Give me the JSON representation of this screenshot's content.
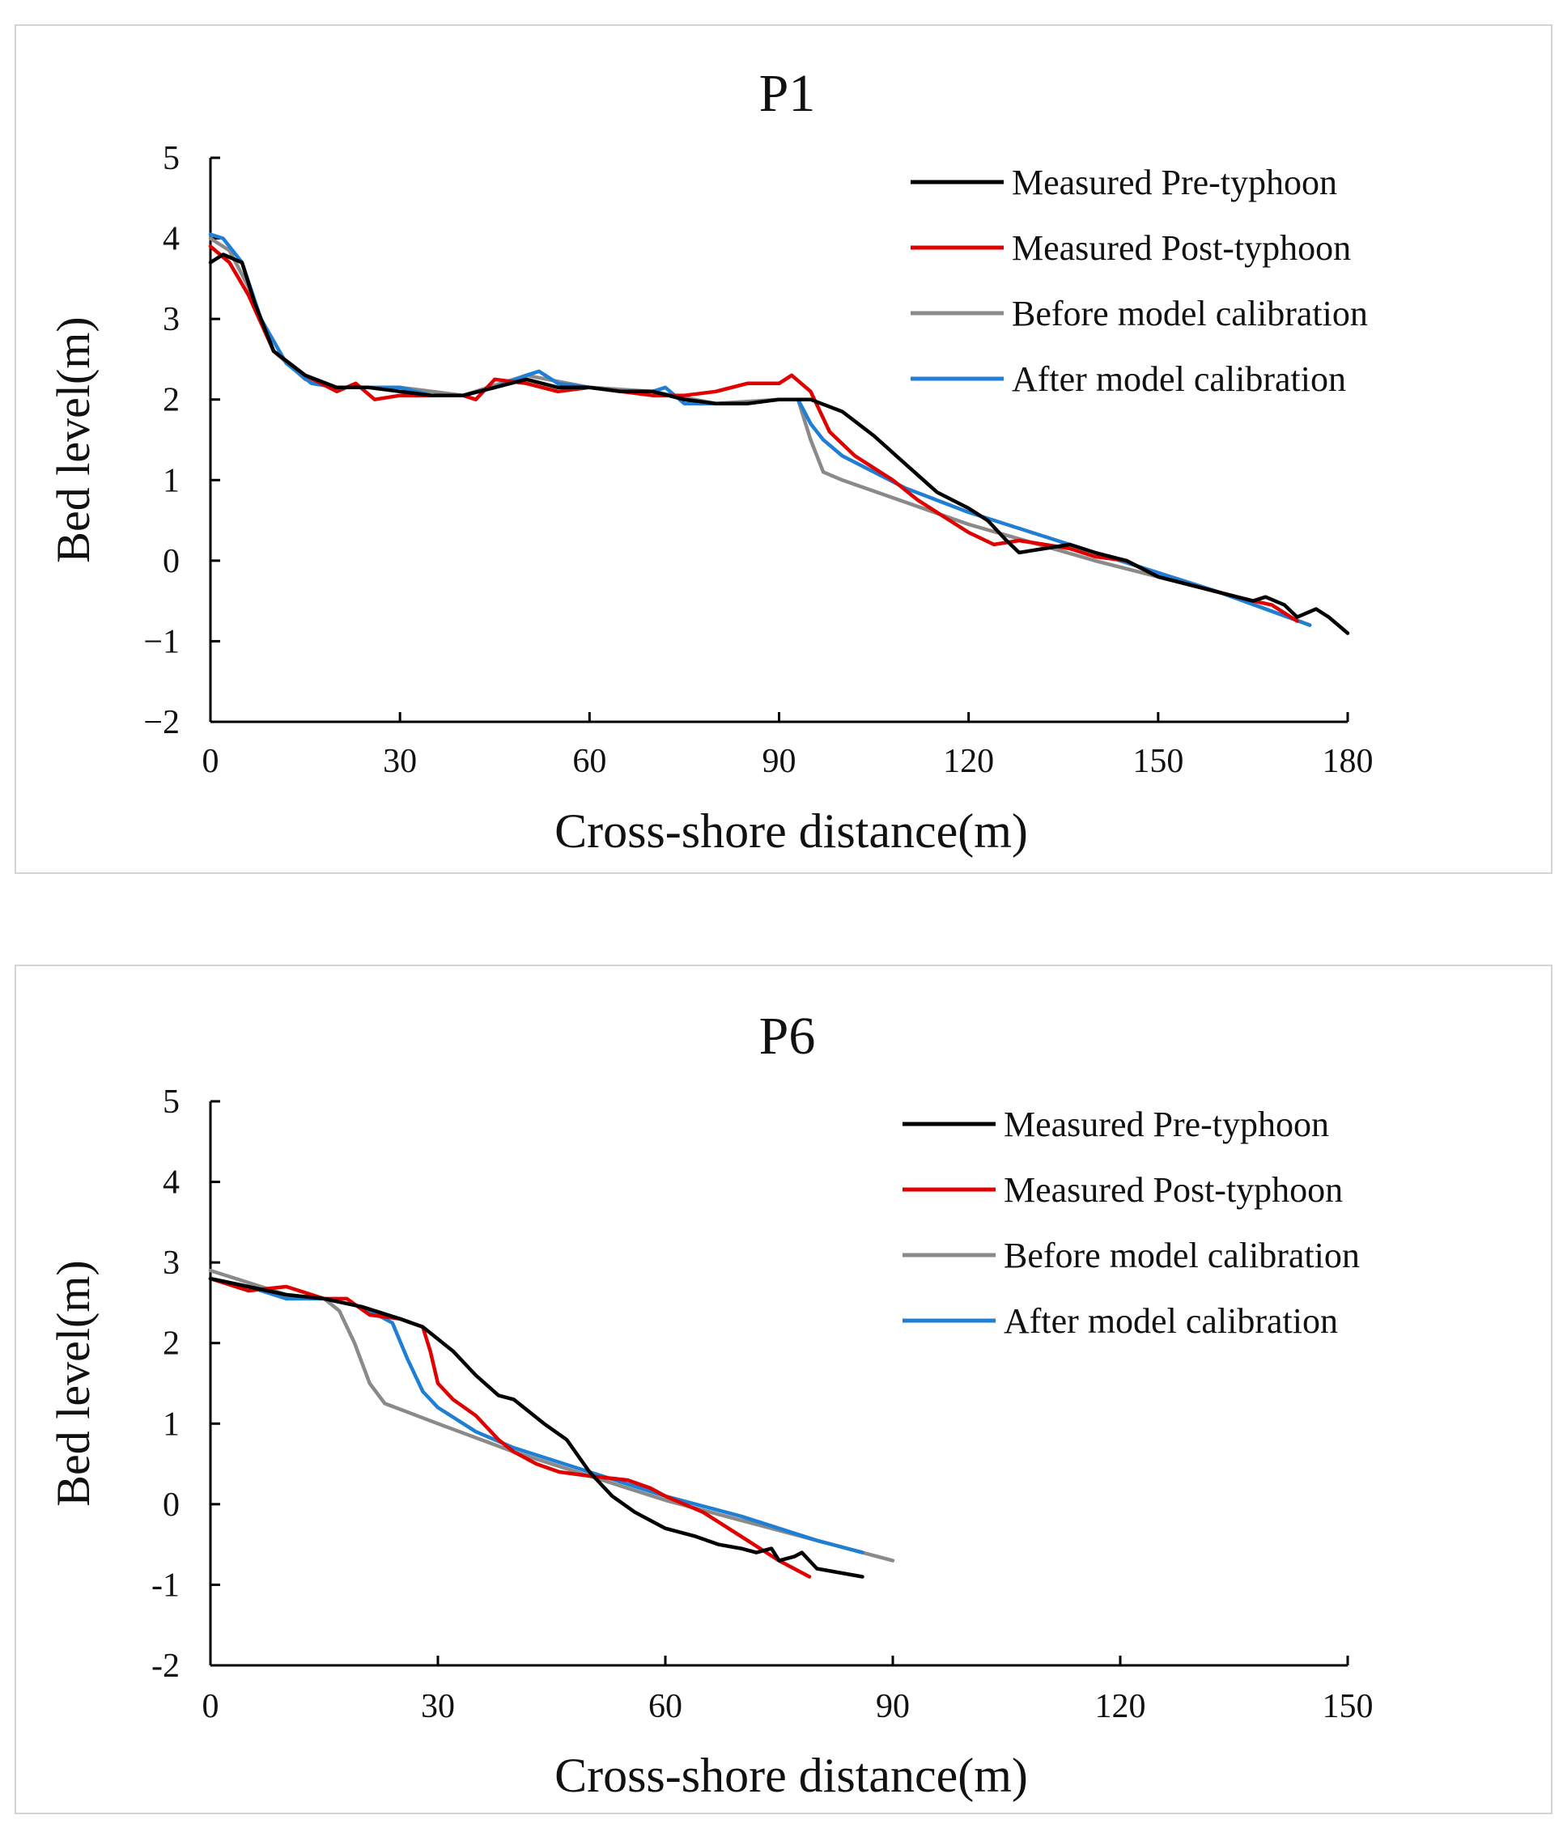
{
  "chart_data": [
    {
      "type": "line",
      "title": "P1",
      "xlabel": "Cross-shore  distance(m)",
      "ylabel": "Bed level(m)",
      "xlim": [
        0,
        180
      ],
      "ylim": [
        -2,
        5
      ],
      "xticks": [
        0,
        30,
        60,
        90,
        120,
        150,
        180
      ],
      "yticks": [
        5,
        4,
        3,
        2,
        1,
        0,
        -1,
        -2
      ],
      "xtick_labels": [
        "0",
        "30",
        "60",
        "90",
        "120",
        "150",
        "180"
      ],
      "ytick_labels": [
        "5",
        "4",
        "3",
        "2",
        "1",
        "0",
        "−1",
        "−2"
      ],
      "legend_position": "top-right",
      "series": [
        {
          "name": "Measured Pre-typhoon",
          "color": "#000000",
          "x": [
            0,
            2,
            5,
            7,
            10,
            15,
            20,
            25,
            30,
            35,
            40,
            45,
            50,
            55,
            60,
            65,
            70,
            75,
            80,
            85,
            90,
            95,
            100,
            105,
            110,
            115,
            120,
            123,
            126,
            128,
            132,
            136,
            140,
            145,
            150,
            155,
            160,
            165,
            167,
            170,
            172,
            175,
            177,
            180
          ],
          "y": [
            3.7,
            3.8,
            3.7,
            3.2,
            2.6,
            2.3,
            2.15,
            2.15,
            2.1,
            2.05,
            2.05,
            2.15,
            2.25,
            2.15,
            2.15,
            2.1,
            2.1,
            2.0,
            1.95,
            1.95,
            2.0,
            2.0,
            1.85,
            1.55,
            1.2,
            0.85,
            0.65,
            0.5,
            0.25,
            0.1,
            0.15,
            0.2,
            0.1,
            0.0,
            -0.2,
            -0.3,
            -0.4,
            -0.5,
            -0.45,
            -0.55,
            -0.7,
            -0.6,
            -0.7,
            -0.9
          ]
        },
        {
          "name": "Measured Post-typhoon",
          "color": "#e00000",
          "x": [
            0,
            3,
            6,
            10,
            15,
            20,
            23,
            26,
            30,
            35,
            40,
            42,
            45,
            50,
            55,
            60,
            65,
            70,
            75,
            80,
            85,
            90,
            92,
            95,
            98,
            102,
            108,
            112,
            116,
            120,
            124,
            128,
            132,
            136,
            140,
            145,
            150,
            155,
            160,
            165,
            168,
            172
          ],
          "y": [
            3.9,
            3.7,
            3.3,
            2.6,
            2.3,
            2.1,
            2.2,
            2.0,
            2.05,
            2.05,
            2.05,
            2.0,
            2.25,
            2.2,
            2.1,
            2.15,
            2.1,
            2.05,
            2.05,
            2.1,
            2.2,
            2.2,
            2.3,
            2.1,
            1.6,
            1.3,
            1.0,
            0.75,
            0.55,
            0.35,
            0.2,
            0.25,
            0.2,
            0.15,
            0.05,
            0.0,
            -0.2,
            -0.3,
            -0.4,
            -0.5,
            -0.55,
            -0.75
          ]
        },
        {
          "name": "Before model calibration",
          "color": "#8a8a8a",
          "x": [
            0,
            3,
            6,
            10,
            15,
            20,
            30,
            40,
            50,
            60,
            70,
            80,
            90,
            93,
            95,
            97,
            100,
            120,
            140,
            160,
            174
          ],
          "y": [
            4.0,
            3.85,
            3.4,
            2.6,
            2.25,
            2.15,
            2.15,
            2.05,
            2.3,
            2.15,
            2.1,
            1.95,
            2.0,
            2.0,
            1.5,
            1.1,
            1.0,
            0.45,
            0.0,
            -0.4,
            -0.8
          ]
        },
        {
          "name": "After model calibration",
          "color": "#1f7fd4",
          "x": [
            0,
            2,
            5,
            8,
            12,
            16,
            20,
            25,
            30,
            35,
            40,
            45,
            50,
            52,
            55,
            60,
            65,
            70,
            72,
            75,
            80,
            85,
            90,
            93,
            95,
            97,
            100,
            105,
            110,
            120,
            130,
            140,
            150,
            160,
            174
          ],
          "y": [
            4.05,
            4.0,
            3.7,
            3.0,
            2.45,
            2.2,
            2.15,
            2.15,
            2.15,
            2.05,
            2.05,
            2.15,
            2.3,
            2.35,
            2.2,
            2.15,
            2.1,
            2.1,
            2.15,
            1.95,
            1.95,
            1.95,
            2.0,
            2.0,
            1.7,
            1.5,
            1.3,
            1.1,
            0.9,
            0.6,
            0.35,
            0.1,
            -0.15,
            -0.4,
            -0.8
          ]
        }
      ]
    },
    {
      "type": "line",
      "title": "P6",
      "xlabel": "Cross-shore  distance(m)",
      "ylabel": "Bed level(m)",
      "xlim": [
        0,
        150
      ],
      "ylim": [
        -2,
        5
      ],
      "xticks": [
        0,
        30,
        60,
        90,
        120,
        150
      ],
      "yticks": [
        5,
        4,
        3,
        2,
        1,
        0,
        -1,
        -2
      ],
      "xtick_labels": [
        "0",
        "30",
        "60",
        "90",
        "120",
        "150"
      ],
      "ytick_labels": [
        "5",
        "4",
        "3",
        "2",
        "1",
        "0",
        "-1",
        "-2"
      ],
      "legend_position": "top-right",
      "series": [
        {
          "name": "Measured Pre-typhoon",
          "color": "#000000",
          "x": [
            0,
            5,
            10,
            15,
            20,
            25,
            28,
            32,
            35,
            38,
            40,
            44,
            47,
            50,
            53,
            56,
            60,
            64,
            67,
            70,
            72,
            74,
            75,
            77,
            78,
            80,
            83,
            86
          ],
          "y": [
            2.8,
            2.7,
            2.6,
            2.55,
            2.45,
            2.3,
            2.2,
            1.9,
            1.6,
            1.35,
            1.3,
            1.0,
            0.8,
            0.4,
            0.1,
            -0.1,
            -0.3,
            -0.4,
            -0.5,
            -0.55,
            -0.6,
            -0.55,
            -0.7,
            -0.65,
            -0.6,
            -0.8,
            -0.85,
            -0.9
          ]
        },
        {
          "name": "Measured Post-typhoon",
          "color": "#e00000",
          "x": [
            0,
            5,
            10,
            15,
            18,
            21,
            25,
            28,
            29,
            30,
            32,
            35,
            38,
            40,
            43,
            46,
            50,
            55,
            58,
            60,
            65,
            70,
            75,
            79
          ],
          "y": [
            2.8,
            2.65,
            2.7,
            2.55,
            2.55,
            2.35,
            2.3,
            2.2,
            1.9,
            1.5,
            1.3,
            1.1,
            0.8,
            0.65,
            0.5,
            0.4,
            0.35,
            0.3,
            0.2,
            0.1,
            -0.1,
            -0.4,
            -0.7,
            -0.9
          ]
        },
        {
          "name": "Before model calibration",
          "color": "#8a8a8a",
          "x": [
            0,
            5,
            10,
            15,
            17,
            19,
            21,
            23,
            30,
            40,
            50,
            60,
            70,
            80,
            90
          ],
          "y": [
            2.9,
            2.75,
            2.6,
            2.55,
            2.4,
            2.0,
            1.5,
            1.25,
            1.0,
            0.65,
            0.35,
            0.05,
            -0.2,
            -0.45,
            -0.7
          ]
        },
        {
          "name": "After model calibration",
          "color": "#1f7fd4",
          "x": [
            0,
            5,
            10,
            15,
            20,
            24,
            26,
            28,
            30,
            35,
            40,
            50,
            60,
            70,
            80,
            86
          ],
          "y": [
            2.8,
            2.7,
            2.55,
            2.55,
            2.45,
            2.25,
            1.8,
            1.4,
            1.2,
            0.9,
            0.7,
            0.4,
            0.1,
            -0.15,
            -0.45,
            -0.6
          ]
        }
      ]
    }
  ]
}
